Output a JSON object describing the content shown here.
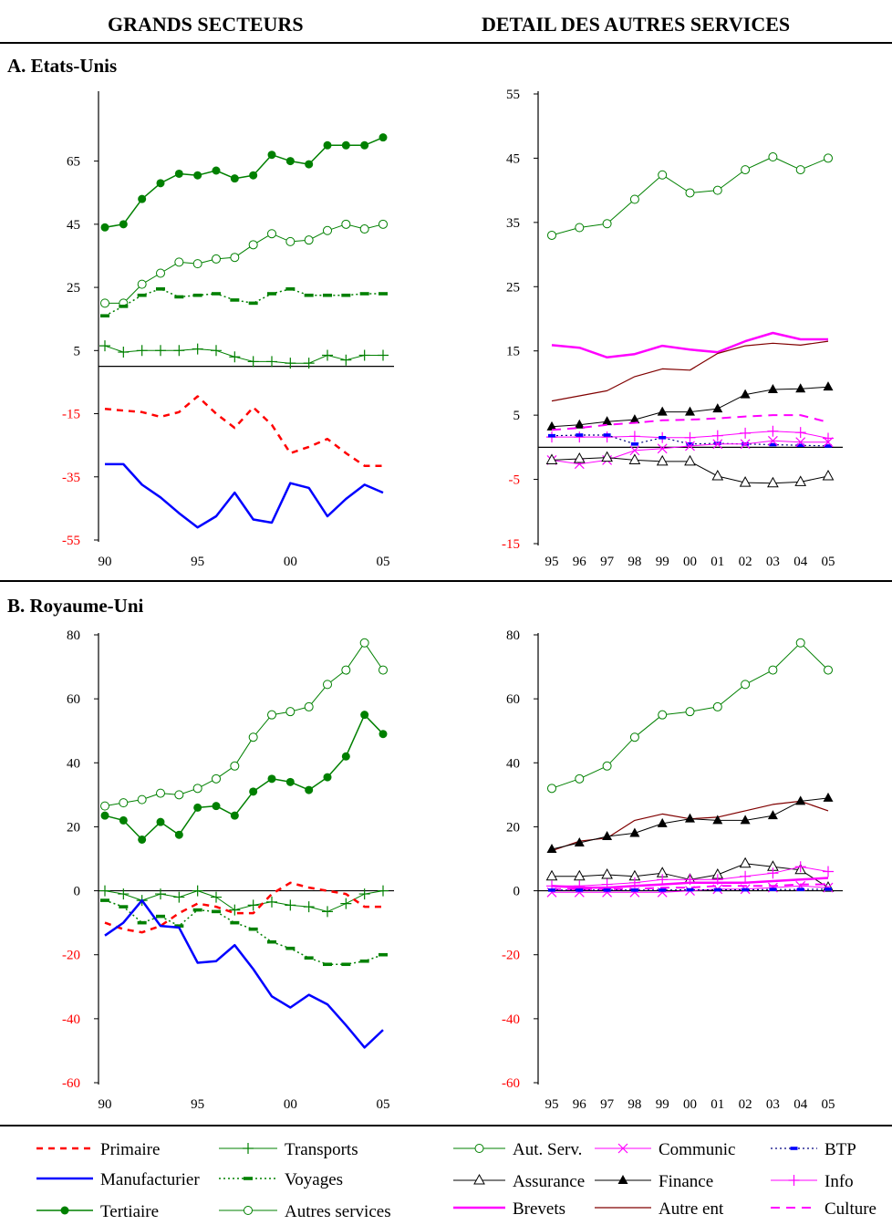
{
  "headers": {
    "left": "GRANDS SECTEURS",
    "right": "DETAIL DES AUTRES SERVICES"
  },
  "sections": {
    "a": "A. Etats-Unis",
    "b": "B. Royaume-Uni"
  },
  "legend": [
    {
      "key": "primaire",
      "label": "Primaire"
    },
    {
      "key": "transports",
      "label": "Transports"
    },
    {
      "key": "manuf",
      "label": "Manufacturier"
    },
    {
      "key": "voyages",
      "label": "Voyages"
    },
    {
      "key": "tertiaire",
      "label": "Tertiaire"
    },
    {
      "key": "autres",
      "label": "Autres services"
    },
    {
      "key": "autserv",
      "label": "Aut. Serv."
    },
    {
      "key": "communic",
      "label": "Communic"
    },
    {
      "key": "btp",
      "label": "BTP"
    },
    {
      "key": "assurance",
      "label": "Assurance"
    },
    {
      "key": "finance",
      "label": "Finance"
    },
    {
      "key": "info",
      "label": "Info"
    },
    {
      "key": "brevets",
      "label": "Brevets"
    },
    {
      "key": "autreent",
      "label": "Autre ent"
    },
    {
      "key": "culture",
      "label": "Culture"
    }
  ],
  "styles": {
    "primaire": {
      "color": "#ff0000",
      "width": 2.5,
      "dash": "7,6",
      "marker": "none"
    },
    "manuf": {
      "color": "#0000ff",
      "width": 2.5,
      "dash": "",
      "marker": "none"
    },
    "tertiaire": {
      "color": "#008000",
      "width": 1.5,
      "dash": "",
      "marker": "dot"
    },
    "transports": {
      "color": "#008000",
      "width": 1,
      "dash": "",
      "marker": "plus"
    },
    "voyages": {
      "color": "#008000",
      "width": 1.5,
      "dash": "2,3",
      "marker": "dash"
    },
    "autres": {
      "color": "#008000",
      "width": 1,
      "dash": "",
      "marker": "circle"
    },
    "autserv": {
      "color": "#008000",
      "width": 1,
      "dash": "",
      "marker": "circle"
    },
    "communic": {
      "color": "#ff00ff",
      "width": 1,
      "dash": "",
      "marker": "x"
    },
    "btp": {
      "color": "#000080",
      "width": 1.2,
      "dash": "2,3",
      "marker": "bluedash"
    },
    "assurance": {
      "color": "#000000",
      "width": 1,
      "dash": "",
      "marker": "triangle-open"
    },
    "finance": {
      "color": "#000000",
      "width": 1,
      "dash": "",
      "marker": "triangle-filled"
    },
    "info": {
      "color": "#ff00ff",
      "width": 1,
      "dash": "",
      "marker": "plus"
    },
    "brevets": {
      "color": "#ff00ff",
      "width": 2.5,
      "dash": "",
      "marker": "none"
    },
    "autreent": {
      "color": "#800000",
      "width": 1.2,
      "dash": "",
      "marker": "none"
    },
    "culture": {
      "color": "#ff00ff",
      "width": 2,
      "dash": "10,7",
      "marker": "none"
    }
  },
  "chart_data": [
    {
      "id": "a-left",
      "type": "line",
      "x": [
        "90",
        "91",
        "92",
        "93",
        "94",
        "95",
        "96",
        "97",
        "98",
        "99",
        "00",
        "01",
        "02",
        "03",
        "04",
        "05"
      ],
      "xticks": [
        "90",
        "95",
        "00",
        "05"
      ],
      "ylim": [
        -55,
        75
      ],
      "yticks": [
        65,
        45,
        25,
        5,
        -15,
        -35,
        -55
      ],
      "series": [
        {
          "key": "tertiaire",
          "values": [
            44,
            45,
            53,
            58,
            61,
            60.5,
            62,
            59.5,
            60.5,
            67,
            65,
            64,
            70,
            70,
            70,
            72.5
          ]
        },
        {
          "key": "autres",
          "values": [
            20,
            20,
            26,
            29.5,
            33,
            32.5,
            34,
            34.5,
            38.5,
            42,
            39.5,
            40,
            43,
            45,
            43.5,
            45
          ]
        },
        {
          "key": "voyages",
          "values": [
            16,
            19,
            22.5,
            24.5,
            22,
            22.5,
            23,
            21,
            20,
            23,
            24.5,
            22.5,
            22.5,
            22.5,
            23,
            23
          ]
        },
        {
          "key": "transports",
          "values": [
            6.5,
            4.5,
            5,
            5,
            5,
            5.5,
            5,
            3,
            1.5,
            1.5,
            1,
            1,
            3.5,
            2,
            3.5,
            3.5
          ]
        },
        {
          "key": "primaire",
          "values": [
            -13.5,
            -14,
            -14.5,
            -16,
            -14.5,
            -9.5,
            -15,
            -19.5,
            -13,
            -18.5,
            -27.5,
            -25.5,
            -23,
            -27.5,
            -31.5,
            -31.5
          ]
        },
        {
          "key": "manuf",
          "values": [
            -31,
            -31,
            -37.5,
            -41.5,
            -46.5,
            -51,
            -47.5,
            -40,
            -48.5,
            -49.5,
            -37,
            -38.5,
            -47.5,
            -42,
            -37.5,
            -40
          ]
        }
      ]
    },
    {
      "id": "a-right",
      "type": "line",
      "x": [
        "95",
        "96",
        "97",
        "98",
        "99",
        "00",
        "01",
        "02",
        "03",
        "04",
        "05"
      ],
      "xticks": [
        "95",
        "96",
        "97",
        "98",
        "99",
        "00",
        "01",
        "02",
        "03",
        "04",
        "05"
      ],
      "ylim": [
        -15,
        55
      ],
      "yticks": [
        55,
        45,
        35,
        25,
        15,
        5,
        -5,
        -15
      ],
      "series": [
        {
          "key": "autserv",
          "values": [
            33,
            34.2,
            34.8,
            38.6,
            42.4,
            39.6,
            40,
            43.2,
            45.2,
            43.2,
            45
          ]
        },
        {
          "key": "brevets",
          "values": [
            15.9,
            15.5,
            14,
            14.5,
            15.8,
            15.2,
            14.8,
            16.5,
            17.8,
            16.8,
            16.8
          ]
        },
        {
          "key": "autreent",
          "values": [
            7.2,
            8,
            8.8,
            11,
            12.2,
            12,
            14.6,
            15.8,
            16.2,
            15.9,
            16.5
          ]
        },
        {
          "key": "finance",
          "values": [
            3.2,
            3.5,
            4,
            4.3,
            5.5,
            5.5,
            6,
            8.2,
            9,
            9.1,
            9.4
          ]
        },
        {
          "key": "culture",
          "values": [
            2.7,
            3,
            3.5,
            3.8,
            4.2,
            4.3,
            4.5,
            4.8,
            5,
            5,
            3.9
          ]
        },
        {
          "key": "info",
          "values": [
            1.6,
            1.6,
            1.6,
            1.7,
            1.5,
            1.5,
            1.8,
            2.2,
            2.5,
            2.3,
            1.4
          ]
        },
        {
          "key": "btp",
          "values": [
            1.8,
            1.9,
            1.9,
            0.5,
            1.5,
            0.5,
            0.6,
            0.5,
            0.4,
            0.3,
            0.2
          ]
        },
        {
          "key": "communic",
          "values": [
            -2,
            -2.6,
            -2,
            -0.5,
            -0.2,
            0.2,
            0.5,
            0.5,
            1,
            0.8,
            0.8
          ]
        },
        {
          "key": "assurance",
          "values": [
            -2,
            -1.8,
            -1.6,
            -2,
            -2.2,
            -2.2,
            -4.5,
            -5.5,
            -5.6,
            -5.4,
            -4.5
          ]
        }
      ]
    },
    {
      "id": "b-left",
      "type": "line",
      "x": [
        "90",
        "91",
        "92",
        "93",
        "94",
        "95",
        "96",
        "97",
        "98",
        "99",
        "00",
        "01",
        "02",
        "03",
        "04",
        "05"
      ],
      "xticks": [
        "90",
        "95",
        "00",
        "05"
      ],
      "ylim": [
        -60,
        80
      ],
      "yticks": [
        80,
        60,
        40,
        20,
        0,
        -20,
        -40,
        -60
      ],
      "series": [
        {
          "key": "autres",
          "values": [
            26.5,
            27.5,
            28.5,
            30.5,
            30,
            32,
            35,
            39,
            48,
            55,
            56,
            57.5,
            64.5,
            69,
            77.5,
            69
          ]
        },
        {
          "key": "tertiaire",
          "values": [
            23.5,
            22,
            16,
            21.5,
            17.5,
            26,
            26.5,
            23.5,
            31,
            35,
            34,
            31.5,
            35.5,
            42,
            55,
            49
          ]
        },
        {
          "key": "transports",
          "values": [
            0,
            -1,
            -3,
            -1,
            -2,
            0,
            -2,
            -6,
            -4.5,
            -3.5,
            -4.5,
            -5,
            -6.5,
            -4,
            -1,
            0
          ]
        },
        {
          "key": "primaire",
          "values": [
            -10,
            -12,
            -13,
            -11,
            -7,
            -4,
            -5,
            -7,
            -7,
            -1,
            2.5,
            1,
            0,
            -1,
            -5,
            -5
          ]
        },
        {
          "key": "voyages",
          "values": [
            -3,
            -5,
            -10,
            -8,
            -11,
            -6,
            -6.5,
            -10,
            -12,
            -16,
            -18,
            -21,
            -23,
            -23,
            -22,
            -20
          ]
        },
        {
          "key": "manuf",
          "values": [
            -14,
            -10,
            -3,
            -11,
            -11.5,
            -22.5,
            -22,
            -17,
            -24.5,
            -33,
            -36.5,
            -32.5,
            -35.5,
            -42,
            -49,
            -43.5
          ]
        }
      ]
    },
    {
      "id": "b-right",
      "type": "line",
      "x": [
        "95",
        "96",
        "97",
        "98",
        "99",
        "00",
        "01",
        "02",
        "03",
        "04",
        "05"
      ],
      "xticks": [
        "95",
        "96",
        "97",
        "98",
        "99",
        "00",
        "01",
        "02",
        "03",
        "04",
        "05"
      ],
      "ylim": [
        -60,
        80
      ],
      "yticks": [
        80,
        60,
        40,
        20,
        0,
        -20,
        -40,
        -60
      ],
      "series": [
        {
          "key": "autserv",
          "values": [
            32,
            35,
            39,
            48,
            55,
            56,
            57.5,
            64.5,
            69,
            77.5,
            69
          ]
        },
        {
          "key": "autreent",
          "values": [
            12.5,
            15.5,
            16.5,
            22,
            24,
            22.5,
            23,
            25,
            27,
            28,
            25
          ]
        },
        {
          "key": "finance",
          "values": [
            13,
            15,
            17,
            18,
            21,
            22.5,
            22,
            22,
            23.5,
            28,
            29
          ]
        },
        {
          "key": "assurance",
          "values": [
            4.5,
            4.5,
            5,
            4.5,
            5.5,
            3.5,
            5,
            8.5,
            7.5,
            6.5,
            1
          ]
        },
        {
          "key": "info",
          "values": [
            1.5,
            1.5,
            2,
            2.5,
            3.5,
            3.5,
            3.5,
            4.5,
            5.5,
            7.5,
            6
          ]
        },
        {
          "key": "brevets",
          "values": [
            1.5,
            1,
            1,
            1.5,
            2,
            2.5,
            2.5,
            2.5,
            3,
            3.5,
            4
          ]
        },
        {
          "key": "culture",
          "values": [
            0.5,
            0.5,
            0.5,
            0.5,
            1,
            1,
            1.5,
            1.5,
            1.5,
            2,
            2
          ]
        },
        {
          "key": "communic",
          "values": [
            -0.5,
            -0.5,
            -0.5,
            -0.5,
            -0.5,
            0,
            0.5,
            0.5,
            1,
            1.5,
            1
          ]
        },
        {
          "key": "btp",
          "values": [
            0.2,
            0.2,
            0.2,
            0.2,
            0.2,
            0.3,
            0.3,
            0.3,
            0.4,
            0.4,
            0.5
          ]
        }
      ]
    }
  ]
}
